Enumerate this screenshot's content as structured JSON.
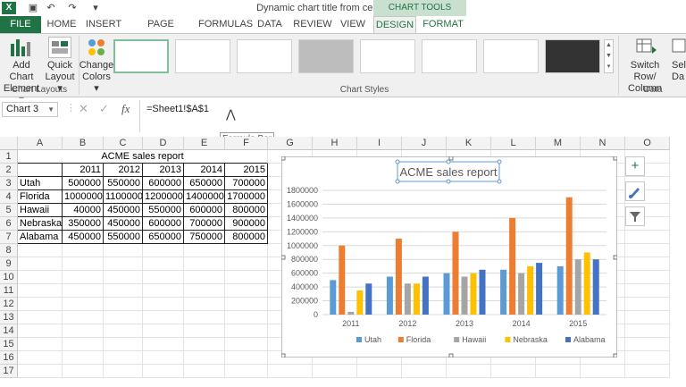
{
  "window": {
    "title": "Dynamic chart title from cell.xlsx - Excel",
    "context_tab_group": "CHART TOOLS"
  },
  "ribbon_tabs": [
    "FILE",
    "HOME",
    "INSERT",
    "PAGE LAYOUT",
    "FORMULAS",
    "DATA",
    "REVIEW",
    "VIEW",
    "DESIGN",
    "FORMAT"
  ],
  "ribbon": {
    "add_chart_element": [
      "Add Chart",
      "Element ▾"
    ],
    "quick_layout": [
      "Quick",
      "Layout ▾"
    ],
    "change_colors": [
      "Change",
      "Colors ▾"
    ],
    "chart_layouts_label": "Chart Layouts",
    "chart_styles_label": "Chart Styles",
    "switch_row_column": [
      "Switch Row/",
      "Column"
    ],
    "select_data": [
      "Sele",
      "Da"
    ],
    "data_label": "Data"
  },
  "formula_bar": {
    "name_box": "Chart 3",
    "fx": "fx",
    "formula": "=Sheet1!$A$1",
    "tooltip": "Formula Bar"
  },
  "columns": [
    "A",
    "B",
    "C",
    "D",
    "E",
    "F",
    "G",
    "H",
    "I",
    "J",
    "K",
    "L",
    "M",
    "N",
    "O"
  ],
  "rows": [
    "1",
    "2",
    "3",
    "4",
    "5",
    "6",
    "7",
    "8",
    "9",
    "10",
    "11",
    "12",
    "13",
    "14",
    "15",
    "16",
    "17"
  ],
  "sheet": {
    "title": "ACME sales report",
    "years": [
      "2011",
      "2012",
      "2013",
      "2014",
      "2015"
    ],
    "data": [
      {
        "state": "Utah",
        "values": [
          "500000",
          "550000",
          "600000",
          "650000",
          "700000"
        ]
      },
      {
        "state": "Florida",
        "values": [
          "1000000",
          "1100000",
          "1200000",
          "1400000",
          "1700000"
        ]
      },
      {
        "state": "Hawaii",
        "values": [
          "40000",
          "450000",
          "550000",
          "600000",
          "800000"
        ]
      },
      {
        "state": "Nebraska",
        "values": [
          "350000",
          "450000",
          "600000",
          "700000",
          "900000"
        ]
      },
      {
        "state": "Alabama",
        "values": [
          "450000",
          "550000",
          "650000",
          "750000",
          "800000"
        ]
      }
    ]
  },
  "chart_data": {
    "type": "bar",
    "title": "ACME sales report",
    "categories": [
      "2011",
      "2012",
      "2013",
      "2014",
      "2015"
    ],
    "series": [
      {
        "name": "Utah",
        "color": "#5b9bd5",
        "values": [
          500000,
          550000,
          600000,
          650000,
          700000
        ]
      },
      {
        "name": "Florida",
        "color": "#ed7d31",
        "values": [
          1000000,
          1100000,
          1200000,
          1400000,
          1700000
        ]
      },
      {
        "name": "Hawaii",
        "color": "#a5a5a5",
        "values": [
          40000,
          450000,
          550000,
          600000,
          800000
        ]
      },
      {
        "name": "Nebraska",
        "color": "#ffc000",
        "values": [
          350000,
          450000,
          600000,
          700000,
          900000
        ]
      },
      {
        "name": "Alabama",
        "color": "#4472c4",
        "values": [
          450000,
          550000,
          650000,
          750000,
          800000
        ]
      }
    ],
    "ylim": [
      0,
      1800000
    ],
    "yticks": [
      "0",
      "200000",
      "400000",
      "600000",
      "800000",
      "1000000",
      "1200000",
      "1400000",
      "1600000",
      "1800000"
    ],
    "grid": true,
    "legend": "bottom"
  },
  "colors": {
    "accent": "#217346"
  },
  "side_buttons": [
    "plus-icon",
    "brush-icon",
    "filter-icon"
  ]
}
